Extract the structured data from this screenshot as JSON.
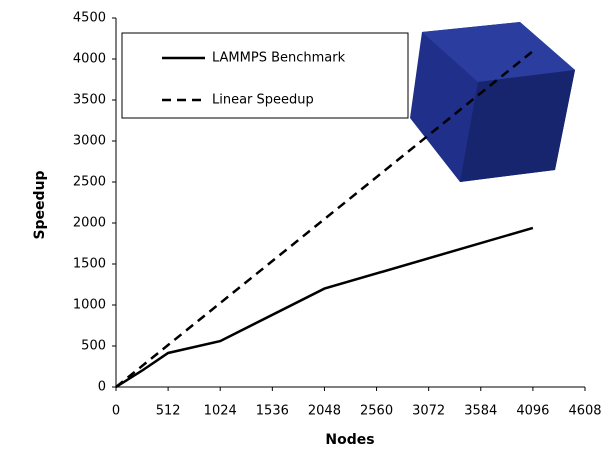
{
  "chart_data": {
    "type": "line",
    "xlabel": "Nodes",
    "ylabel": "Speedup",
    "xlim": [
      0,
      4608
    ],
    "xticks": [
      0,
      512,
      1024,
      1536,
      2048,
      2560,
      3072,
      3584,
      4096,
      4608
    ],
    "ylim": [
      0,
      4500
    ],
    "yticks": [
      0,
      500,
      1000,
      1500,
      2000,
      2500,
      3000,
      3500,
      4000,
      4500
    ],
    "legend": "upper-left",
    "series": [
      {
        "name": "LAMMPS Benchmark",
        "color": "#000000",
        "dashed": false,
        "x": [
          0,
          256,
          512,
          1024,
          2048,
          4096
        ],
        "values": [
          0,
          200,
          415,
          560,
          1200,
          1940
        ]
      },
      {
        "name": "Linear Speedup",
        "color": "#000000",
        "dashed": true,
        "x": [
          0,
          512,
          1024,
          2048,
          4096
        ],
        "values": [
          0,
          512,
          1024,
          2048,
          4096
        ]
      }
    ]
  }
}
